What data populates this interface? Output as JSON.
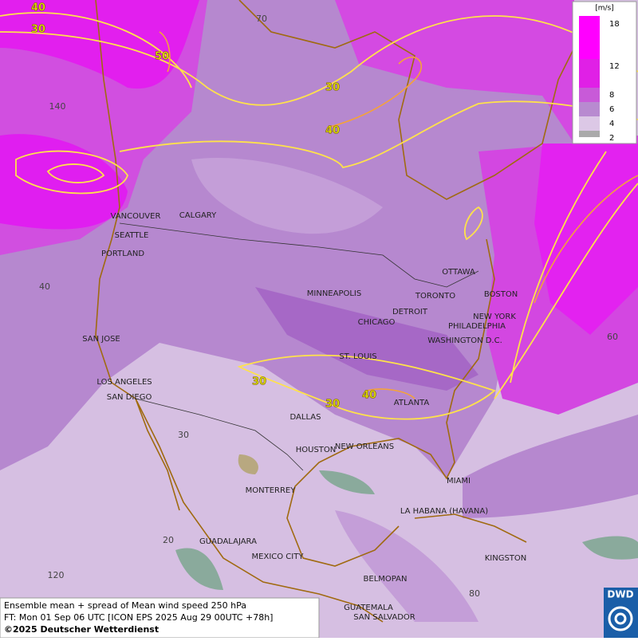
{
  "legend": {
    "unit": "[m/s]",
    "labels": [
      "18",
      "12",
      "8",
      "6",
      "4",
      "2"
    ]
  },
  "cities": [
    "VANCOUVER",
    "CALGARY",
    "SEATTLE",
    "PORTLAND",
    "SAN JOSE",
    "LOS ANGELES",
    "SAN DIEGO",
    "MINNEAPOLIS",
    "CHICAGO",
    "DETROIT",
    "TORONTO",
    "OTTAWA",
    "BOSTON",
    "NEW YORK",
    "PHILADELPHIA",
    "WASHINGTON D.C.",
    "ST. LOUIS",
    "ATLANTA",
    "DALLAS",
    "HOUSTON",
    "NEW ORLEANS",
    "MIAMI",
    "MONTERREY",
    "LA HABANA (HAVANA)",
    "GUADALAJARA",
    "MEXICO CITY",
    "KINGSTON",
    "BELMOPAN",
    "GUATEMALA",
    "SAN SALVADOR"
  ],
  "contour_labels": [
    "40",
    "30",
    "50",
    "30",
    "40",
    "30",
    "30",
    "40"
  ],
  "grid_labels": [
    "70",
    "140",
    "40",
    "60",
    "30",
    "20",
    "120",
    "80"
  ],
  "caption": {
    "line1": "Ensemble mean + spread of Mean wind speed 250 hPa",
    "line2": "FT: Mon 01 Sep 06 UTC [ICON EPS 2025 Aug 29 00UTC +78h]",
    "line3": "©2025 Deutscher Wetterdienst"
  },
  "logo": "DWD"
}
